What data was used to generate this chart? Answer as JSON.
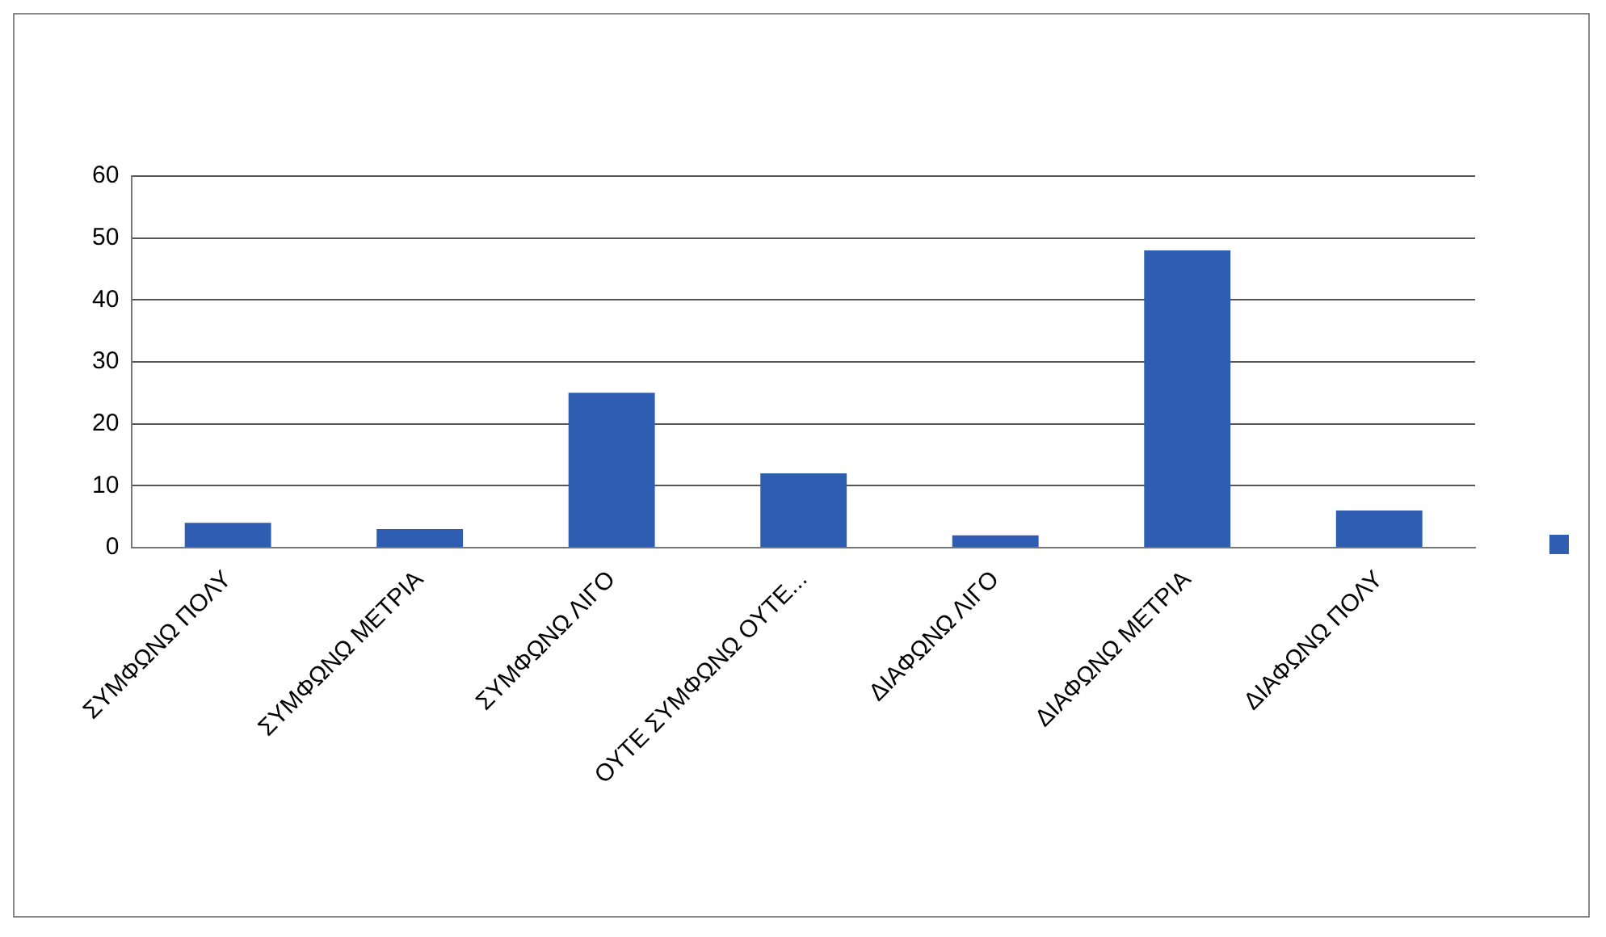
{
  "chart_data": {
    "type": "bar",
    "categories": [
      "ΣΥΜΦΩΝΩ ΠΟΛΥ",
      "ΣΥΜΦΩΝΩ ΜΕΤΡΙΑ",
      "ΣΥΜΦΩΝΩ ΛΙΓΟ",
      "ΟΥΤΕ ΣΥΜΦΩΝΩ ΟΥΤΕ...",
      "ΔΙΑΦΩΝΩ ΛΙΓΟ",
      "ΔΙΑΦΩΝΩ ΜΕΤΡΙΑ",
      "ΔΙΑΦΩΝΩ ΠΟΛΥ"
    ],
    "series": [
      {
        "color": "#2f5db2",
        "values": [
          4,
          3,
          25,
          12,
          2,
          48,
          6
        ]
      }
    ],
    "ylim": [
      0,
      60
    ],
    "yticks": [
      0,
      10,
      20,
      30,
      40,
      50,
      60
    ],
    "grid": "y"
  }
}
